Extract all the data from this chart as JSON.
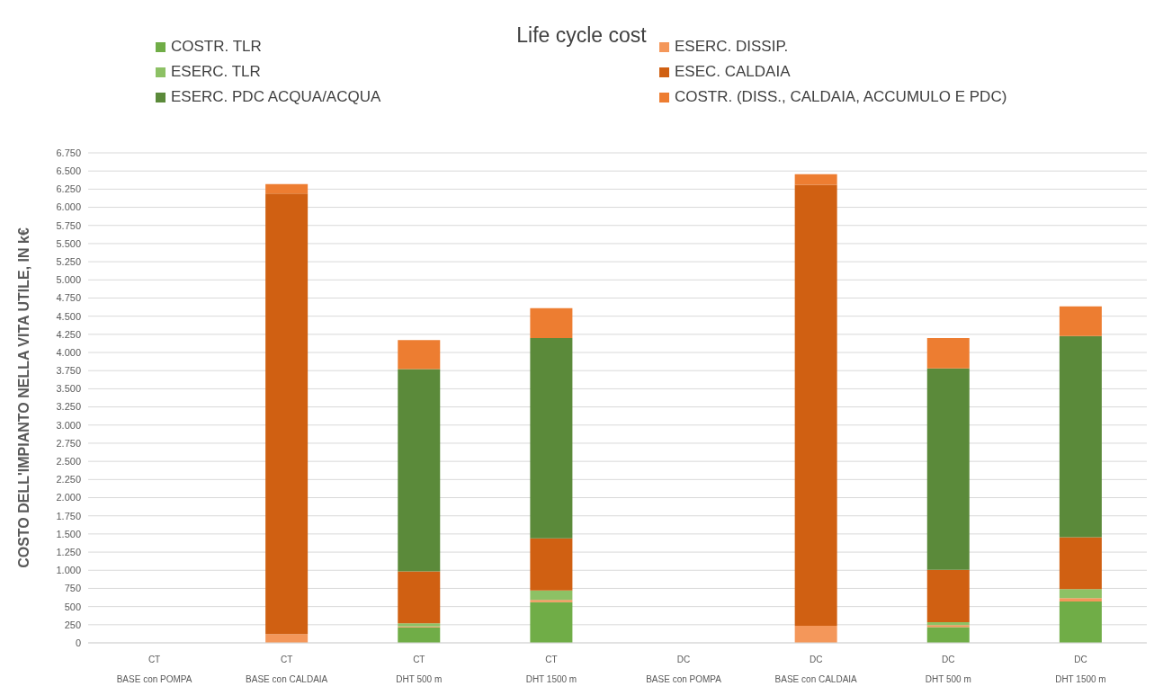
{
  "chart_data": {
    "type": "bar",
    "title": "Life cycle cost",
    "ylabel": "COSTO DELL'IMPIANTO NELLA VITA UTILE, IN  k€",
    "categories": [
      "CT\nBASE con POMPA",
      "CT\nBASE con CALDAIA",
      "CT\nDHT 500 m",
      "CT\nDHT 1500 m",
      "DC\nBASE con POMPA",
      "DC\nBASE con CALDAIA",
      "DC\nDHT 500 m",
      "DC\nDHT 1500 m"
    ],
    "stacked": true,
    "grid": "y",
    "legend": "top",
    "ylim": [
      0,
      6750
    ],
    "yticks": [
      {
        "value": 0,
        "label": "0"
      },
      {
        "value": 250,
        "label": "250"
      },
      {
        "value": 500,
        "label": "500"
      },
      {
        "value": 750,
        "label": "750"
      },
      {
        "value": 1000,
        "label": "1.000"
      },
      {
        "value": 1250,
        "label": "1.250"
      },
      {
        "value": 1500,
        "label": "1.500"
      },
      {
        "value": 1750,
        "label": "1.750"
      },
      {
        "value": 2000,
        "label": "2.000"
      },
      {
        "value": 2250,
        "label": "2.250"
      },
      {
        "value": 2500,
        "label": "2.500"
      },
      {
        "value": 2750,
        "label": "2.750"
      },
      {
        "value": 3000,
        "label": "3.000"
      },
      {
        "value": 3250,
        "label": "3.250"
      },
      {
        "value": 3500,
        "label": "3.500"
      },
      {
        "value": 3750,
        "label": "3.750"
      },
      {
        "value": 4000,
        "label": "4.000"
      },
      {
        "value": 4250,
        "label": "4.250"
      },
      {
        "value": 4500,
        "label": "4.500"
      },
      {
        "value": 4750,
        "label": "4.750"
      },
      {
        "value": 5000,
        "label": "5.000"
      },
      {
        "value": 5250,
        "label": "5.250"
      },
      {
        "value": 5500,
        "label": "5.500"
      },
      {
        "value": 5750,
        "label": "5.750"
      },
      {
        "value": 6000,
        "label": "6.000"
      },
      {
        "value": 6250,
        "label": "6.250"
      },
      {
        "value": 6500,
        "label": "6.500"
      },
      {
        "value": 6750,
        "label": "6.750"
      }
    ],
    "series": [
      {
        "name": "COSTR. TLR",
        "color": "#70ad47",
        "values": [
          0,
          0,
          215,
          560,
          0,
          0,
          218,
          570
        ]
      },
      {
        "name": "ESERC. DISSIP.",
        "color": "#f4975a",
        "values": [
          0,
          120,
          10,
          30,
          0,
          235,
          27,
          45
        ]
      },
      {
        "name": "ESERC. TLR",
        "color": "#8dc165",
        "values": [
          0,
          0,
          45,
          130,
          0,
          0,
          39,
          125
        ]
      },
      {
        "name": "ESEC. CALDAIA",
        "color": "#d06012",
        "values": [
          0,
          6070,
          715,
          720,
          0,
          6075,
          721,
          715
        ]
      },
      {
        "name": "ESERC. PDC ACQUA/ACQUA",
        "color": "#5b8a3a",
        "values": [
          0,
          0,
          2785,
          2760,
          0,
          0,
          2775,
          2770
        ]
      },
      {
        "name": "COSTR. (DISS., CALDAIA, ACCUMULO E PDC)",
        "color": "#ed7d31",
        "values": [
          0,
          130,
          400,
          410,
          0,
          145,
          420,
          410
        ]
      }
    ]
  }
}
